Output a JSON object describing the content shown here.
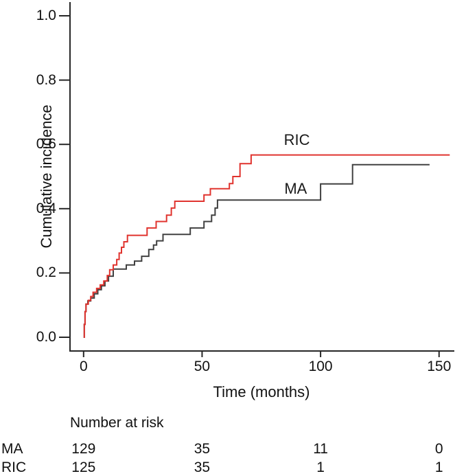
{
  "chart_data": {
    "type": "line",
    "variant": "step",
    "title": "",
    "xlabel": "Time (months)",
    "ylabel": "Cumulative incidence",
    "xlim": [
      0,
      158
    ],
    "ylim": [
      0.0,
      1.0
    ],
    "grid": false,
    "legend_position": "inline-labels",
    "xticks": [
      "0",
      "50",
      "100",
      "150"
    ],
    "xtick_values": [
      0,
      50,
      100,
      150
    ],
    "yticks": [
      "0.0",
      "0.2",
      "0.4",
      "0.6",
      "0.8",
      "1.0"
    ],
    "ytick_values": [
      0.0,
      0.2,
      0.4,
      0.6,
      0.8,
      1.0
    ],
    "series": [
      {
        "name": "RIC",
        "color": "#e0332e",
        "end_x": 154.5,
        "label": {
          "text": "RIC",
          "x": 90,
          "y": 0.613
        },
        "points": [
          [
            0,
            0
          ],
          [
            0.3,
            0.04
          ],
          [
            0.6,
            0.08
          ],
          [
            1,
            0.103
          ],
          [
            2,
            0.115
          ],
          [
            3,
            0.127
          ],
          [
            4,
            0.14
          ],
          [
            5.5,
            0.152
          ],
          [
            7,
            0.163
          ],
          [
            8.5,
            0.175
          ],
          [
            10,
            0.192
          ],
          [
            11,
            0.21
          ],
          [
            12.5,
            0.225
          ],
          [
            14,
            0.242
          ],
          [
            15,
            0.262
          ],
          [
            16,
            0.28
          ],
          [
            17,
            0.297
          ],
          [
            18.5,
            0.317
          ],
          [
            26.8,
            0.34
          ],
          [
            30.6,
            0.36
          ],
          [
            35,
            0.38
          ],
          [
            37,
            0.402
          ],
          [
            38.5,
            0.423
          ],
          [
            50.8,
            0.443
          ],
          [
            53.5,
            0.462
          ],
          [
            61.5,
            0.478
          ],
          [
            63,
            0.5
          ],
          [
            66,
            0.54
          ],
          [
            70.7,
            0.567
          ]
        ]
      },
      {
        "name": "MA",
        "color": "#404040",
        "end_x": 146,
        "label": {
          "text": "MA",
          "x": 89.5,
          "y": 0.462
        },
        "points": [
          [
            0,
            0
          ],
          [
            0.3,
            0.04
          ],
          [
            0.6,
            0.08
          ],
          [
            1,
            0.103
          ],
          [
            1.8,
            0.113
          ],
          [
            3,
            0.122
          ],
          [
            4.5,
            0.135
          ],
          [
            6,
            0.148
          ],
          [
            7.5,
            0.16
          ],
          [
            9,
            0.175
          ],
          [
            10.5,
            0.19
          ],
          [
            12.5,
            0.212
          ],
          [
            18,
            0.225
          ],
          [
            21.5,
            0.237
          ],
          [
            24.5,
            0.252
          ],
          [
            27.5,
            0.273
          ],
          [
            29.5,
            0.287
          ],
          [
            30.8,
            0.3
          ],
          [
            33.5,
            0.32
          ],
          [
            45,
            0.34
          ],
          [
            50.8,
            0.36
          ],
          [
            54,
            0.38
          ],
          [
            55.5,
            0.402
          ],
          [
            56.5,
            0.427
          ],
          [
            100,
            0.477
          ],
          [
            113.5,
            0.537
          ]
        ]
      }
    ],
    "number_at_risk": {
      "title": "Number at risk",
      "times": [
        0,
        50,
        100,
        150
      ],
      "rows": [
        {
          "name": "MA",
          "counts": [
            "129",
            "35",
            "11",
            "0"
          ]
        },
        {
          "name": "RIC",
          "counts": [
            "125",
            "35",
            "1",
            "1"
          ]
        }
      ]
    },
    "axis_color": "#262626"
  }
}
